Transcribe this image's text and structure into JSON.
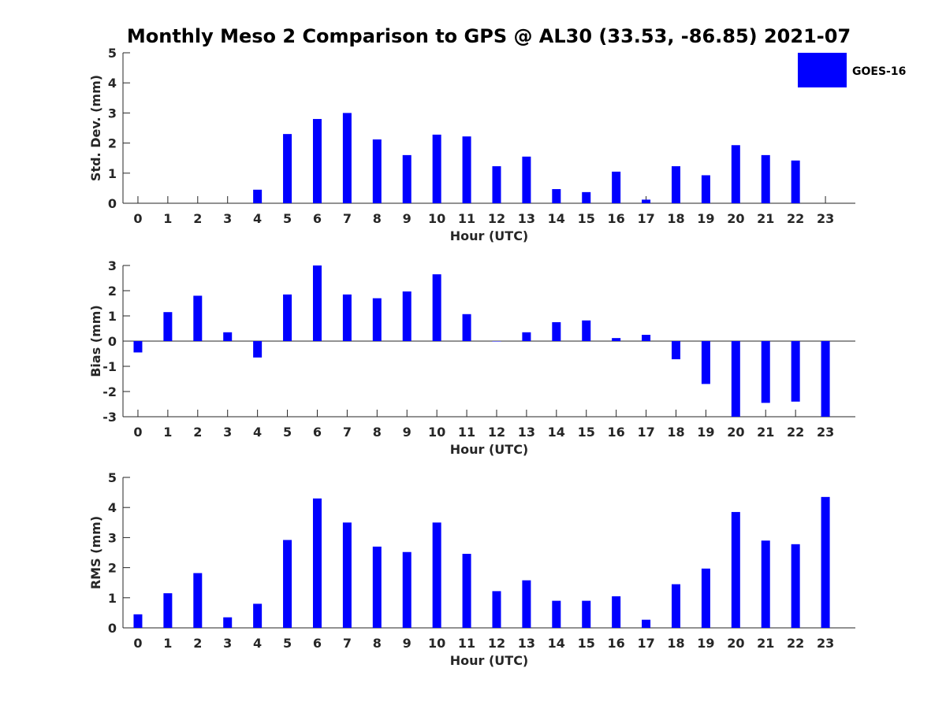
{
  "title": "Monthly Meso 2 Comparison to GPS @ AL30 (33.53, -86.85) 2021-07",
  "bar_color": "#0000ff",
  "legend": {
    "label": "GOES-16",
    "placement": "top-right"
  },
  "chart_data": [
    {
      "type": "bar",
      "categories": [
        "0",
        "1",
        "2",
        "3",
        "4",
        "5",
        "6",
        "7",
        "8",
        "9",
        "10",
        "11",
        "12",
        "13",
        "14",
        "15",
        "16",
        "17",
        "18",
        "19",
        "20",
        "21",
        "22",
        "23"
      ],
      "series": [
        {
          "name": "GOES-16",
          "values": [
            null,
            null,
            null,
            null,
            0.45,
            2.3,
            2.8,
            3.0,
            2.12,
            1.6,
            2.28,
            2.22,
            1.23,
            1.55,
            0.47,
            0.37,
            1.05,
            0.12,
            1.23,
            0.93,
            1.93,
            1.6,
            1.42,
            null
          ]
        }
      ],
      "xlabel": "Hour (UTC)",
      "ylabel": "Std. Dev. (mm)",
      "ylim": [
        0,
        5
      ],
      "yticks": [
        0,
        1,
        2,
        3,
        4,
        5
      ],
      "grid": false
    },
    {
      "type": "bar",
      "categories": [
        "0",
        "1",
        "2",
        "3",
        "4",
        "5",
        "6",
        "7",
        "8",
        "9",
        "10",
        "11",
        "12",
        "13",
        "14",
        "15",
        "16",
        "17",
        "18",
        "19",
        "20",
        "21",
        "22",
        "23"
      ],
      "series": [
        {
          "name": "GOES-16",
          "values": [
            -0.45,
            1.15,
            1.8,
            0.35,
            -0.65,
            1.85,
            3.0,
            1.85,
            1.7,
            1.97,
            2.65,
            1.07,
            0.0,
            0.35,
            0.75,
            0.82,
            0.12,
            0.25,
            -0.72,
            -1.7,
            -3.0,
            -2.45,
            -2.4,
            -3.0
          ]
        }
      ],
      "xlabel": "Hour (UTC)",
      "ylabel": "Bias (mm)",
      "ylim": [
        -3,
        3
      ],
      "yticks": [
        -3,
        -2,
        -1,
        0,
        1,
        2,
        3
      ],
      "grid": false
    },
    {
      "type": "bar",
      "categories": [
        "0",
        "1",
        "2",
        "3",
        "4",
        "5",
        "6",
        "7",
        "8",
        "9",
        "10",
        "11",
        "12",
        "13",
        "14",
        "15",
        "16",
        "17",
        "18",
        "19",
        "20",
        "21",
        "22",
        "23"
      ],
      "series": [
        {
          "name": "GOES-16",
          "values": [
            0.45,
            1.15,
            1.82,
            0.35,
            0.8,
            2.92,
            4.3,
            3.5,
            2.7,
            2.52,
            3.5,
            2.46,
            1.22,
            1.58,
            0.9,
            0.9,
            1.05,
            0.27,
            1.45,
            1.97,
            3.85,
            2.9,
            2.78,
            4.35
          ]
        }
      ],
      "xlabel": "Hour (UTC)",
      "ylabel": "RMS (mm)",
      "ylim": [
        0,
        5
      ],
      "yticks": [
        0,
        1,
        2,
        3,
        4,
        5
      ],
      "grid": false
    }
  ]
}
